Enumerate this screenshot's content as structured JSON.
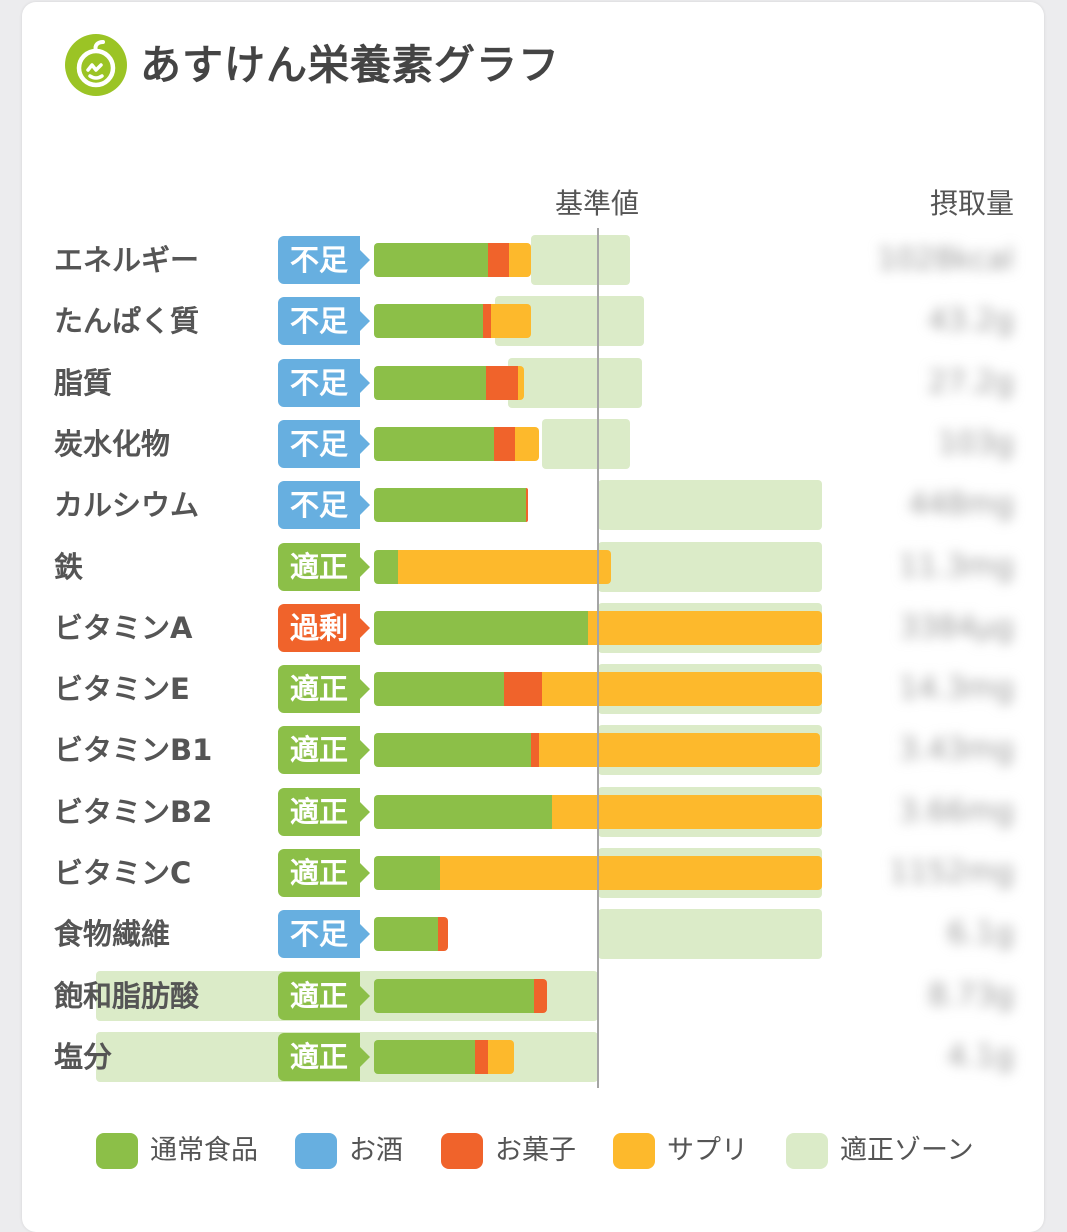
{
  "app": {
    "title": "あすけん栄養素グラフ",
    "logo_icon": "apple-icon"
  },
  "columns": {
    "reference": "基準値",
    "intake": "摂取量"
  },
  "colors": {
    "regular_food": "#8cbf48",
    "alcohol": "#67afe0",
    "snacks": "#f0632b",
    "supplement": "#fdb92c",
    "proper_zone": "#dbebc8",
    "status_short": "#67afe0",
    "status_ok": "#8cbf48",
    "status_over": "#f0632b"
  },
  "legend": [
    {
      "label": "通常食品",
      "color": "#8cbf48"
    },
    {
      "label": "お酒",
      "color": "#67afe0"
    },
    {
      "label": "お菓子",
      "color": "#f0632b"
    },
    {
      "label": "サプリ",
      "color": "#fdb92c"
    },
    {
      "label": "適正ゾーン",
      "color": "#dbebc8"
    }
  ],
  "chart_data": {
    "type": "bar",
    "orientation": "horizontal",
    "stacked": true,
    "value_unit": "% of reference value (基準値 = 100)",
    "reference_value": 100,
    "xlim": [
      0,
      200
    ],
    "grid": false,
    "legend_position": "bottom",
    "series_names": [
      "通常食品",
      "お酒",
      "お菓子",
      "サプリ"
    ],
    "rows": [
      {
        "name": "エネルギー",
        "status": "不足",
        "status_type": "short",
        "intake": "1028kcal",
        "values": [
          50.8,
          0,
          9.4,
          9.8
        ],
        "proper_zone": [
          86.6,
          114.3
        ]
      },
      {
        "name": "たんぱく質",
        "status": "不足",
        "status_type": "short",
        "intake": "43.2g",
        "values": [
          48.7,
          0,
          3.6,
          17.9
        ],
        "proper_zone": [
          79.5,
          120.5
        ]
      },
      {
        "name": "脂質",
        "status": "不足",
        "status_type": "short",
        "intake": "27.2g",
        "values": [
          50.0,
          0,
          14.3,
          2.7
        ],
        "proper_zone": [
          82.1,
          119.6
        ]
      },
      {
        "name": "炭水化物",
        "status": "不足",
        "status_type": "short",
        "intake": "103g",
        "values": [
          53.6,
          0,
          9.4,
          10.7
        ],
        "proper_zone": [
          88.8,
          114.3
        ]
      },
      {
        "name": "カルシウム",
        "status": "不足",
        "status_type": "short",
        "intake": "448mg",
        "values": [
          67.9,
          0,
          0.9,
          0
        ],
        "proper_zone": [
          100,
          200
        ]
      },
      {
        "name": "鉄",
        "status": "適正",
        "status_type": "ok",
        "intake": "11.3mg",
        "values": [
          10.7,
          0,
          0,
          95.1
        ],
        "proper_zone": [
          100,
          200
        ]
      },
      {
        "name": "ビタミンA",
        "status": "過剰",
        "status_type": "over",
        "intake": "3384μg",
        "values": [
          95.5,
          0,
          0,
          104.5
        ],
        "proper_zone": [
          100,
          200
        ]
      },
      {
        "name": "ビタミンE",
        "status": "適正",
        "status_type": "ok",
        "intake": "14.3mg",
        "values": [
          58.0,
          0,
          17.0,
          125.0
        ],
        "proper_zone": [
          100,
          200
        ]
      },
      {
        "name": "ビタミンB1",
        "status": "適正",
        "status_type": "ok",
        "intake": "3.43mg",
        "values": [
          70.1,
          0,
          3.6,
          125.4
        ],
        "proper_zone": [
          100,
          200
        ]
      },
      {
        "name": "ビタミンB2",
        "status": "適正",
        "status_type": "ok",
        "intake": "3.66mg",
        "values": [
          79.5,
          0,
          0,
          120.5
        ],
        "proper_zone": [
          100,
          200
        ]
      },
      {
        "name": "ビタミンC",
        "status": "適正",
        "status_type": "ok",
        "intake": "1152mg",
        "values": [
          29.5,
          0,
          0,
          170.5
        ],
        "proper_zone": [
          100,
          200
        ]
      },
      {
        "name": "食物繊維",
        "status": "不足",
        "status_type": "short",
        "intake": "6.1g",
        "values": [
          28.6,
          0,
          4.5,
          0
        ],
        "proper_zone": [
          100,
          200
        ]
      },
      {
        "name": "飽和脂肪酸",
        "status": "適正",
        "status_type": "ok",
        "intake": "8.73g",
        "values": [
          71.4,
          0,
          5.8,
          0
        ],
        "proper_zone": [
          0,
          100
        ]
      },
      {
        "name": "塩分",
        "status": "適正",
        "status_type": "ok",
        "intake": "4.1g",
        "values": [
          45.1,
          0,
          5.8,
          11.6
        ],
        "proper_zone": [
          0,
          100
        ]
      }
    ]
  }
}
